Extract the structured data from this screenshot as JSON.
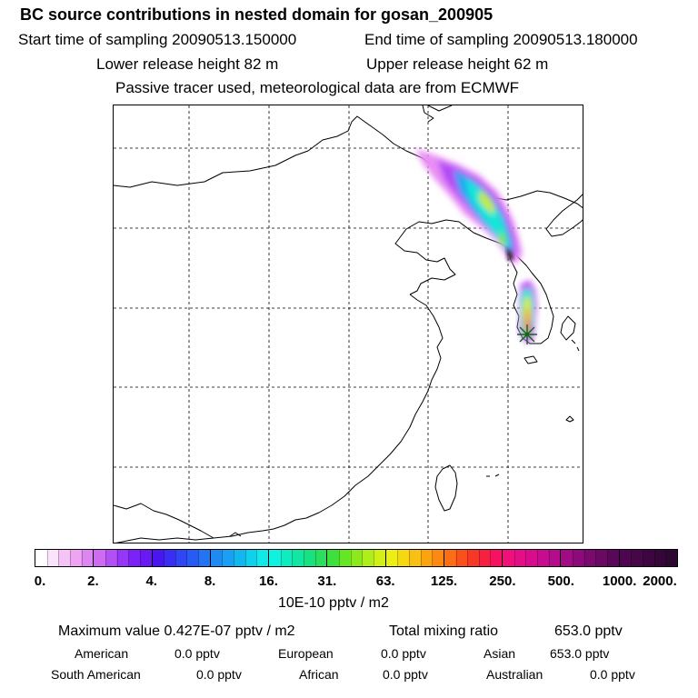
{
  "header": {
    "title": "BC  source contributions in nested domain for gosan_200905",
    "start_label": "Start time of sampling 20090513.150000",
    "end_label": "End time of sampling 20090513.180000",
    "lower_label": "Lower release height   82 m",
    "upper_label": "Upper release height   62 m",
    "note": "Passive tracer used, meteorological data are from ECMWF"
  },
  "colorbar": {
    "unit": "10E-10 pptv / m2",
    "ticks": [
      "0.",
      "2.",
      "4.",
      "8.",
      "16.",
      "31.",
      "63.",
      "125.",
      "250.",
      "500.",
      "1000.",
      "2000."
    ],
    "colors": [
      "#fde6fb",
      "#d97cf0",
      "#8a1cf6",
      "#3a3cf2",
      "#1b9af0",
      "#10f0e6",
      "#14e070",
      "#7be81c",
      "#f5e812",
      "#fb7a14",
      "#f7187e",
      "#a3107a"
    ]
  },
  "map": {
    "marker": "release-site-star"
  },
  "summary": {
    "max_label": "Maximum value  0.427E-07 pptv / m2",
    "total_label": "Total mixing ratio",
    "total_value": "653.0 pptv",
    "regions": [
      {
        "name": "American",
        "value": "0.0 pptv"
      },
      {
        "name": "European",
        "value": "0.0 pptv"
      },
      {
        "name": "Asian",
        "value": "653.0 pptv"
      },
      {
        "name": "South American",
        "value": "0.0 pptv"
      },
      {
        "name": "African",
        "value": "0.0 pptv"
      },
      {
        "name": "Australian",
        "value": "0.0 pptv"
      }
    ]
  }
}
